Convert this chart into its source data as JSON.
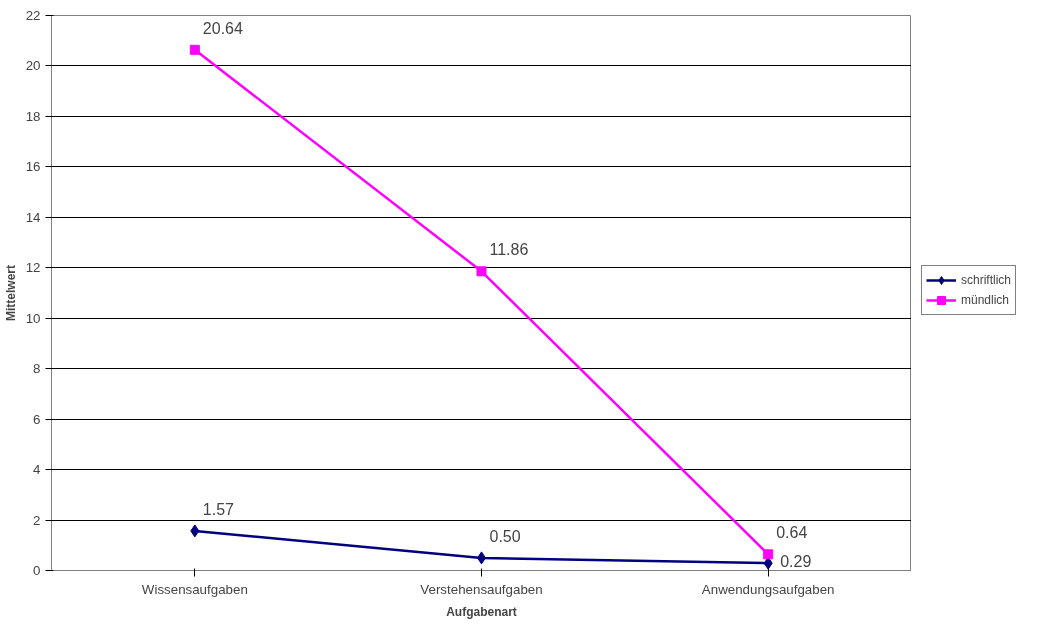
{
  "chart_data": {
    "type": "line",
    "xlabel": "Aufgabenart",
    "ylabel": "Mittelwert",
    "categories": [
      "Wissensaufgaben",
      "Verstehensaufgaben",
      "Anwendungsaufgaben"
    ],
    "series": [
      {
        "name": "schriftlich",
        "color": "#000080",
        "marker": "diamond",
        "values": [
          1.57,
          0.5,
          0.29
        ],
        "value_labels": [
          "1.57",
          "0.50",
          "0.29"
        ]
      },
      {
        "name": "mündlich",
        "color": "#ff00ff",
        "marker": "square",
        "values": [
          20.64,
          11.86,
          0.64
        ],
        "value_labels": [
          "20.64",
          "11.86",
          "0.64"
        ]
      }
    ],
    "ylim": [
      0,
      22
    ],
    "yticks": [
      0,
      2,
      4,
      6,
      8,
      10,
      12,
      14,
      16,
      18,
      20,
      22
    ],
    "grid": "y",
    "legend": "right"
  }
}
